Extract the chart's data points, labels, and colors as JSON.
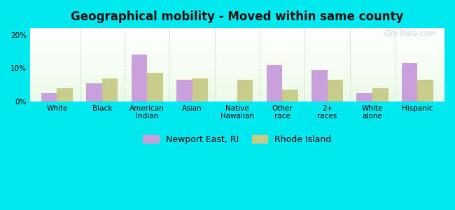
{
  "title": "Geographical mobility - Moved within same county",
  "categories": [
    "White",
    "Black",
    "American\nIndian",
    "Asian",
    "Native\nHawaiian",
    "Other\nrace",
    "2+\nraces",
    "White\nalone",
    "Hispanic"
  ],
  "newport_values": [
    2.5,
    5.5,
    14.0,
    6.5,
    0.0,
    11.0,
    9.5,
    2.5,
    11.5
  ],
  "rhode_island_values": [
    4.0,
    7.0,
    8.5,
    7.0,
    6.5,
    3.5,
    6.5,
    4.0,
    6.5
  ],
  "newport_color": "#c9a0dc",
  "rhode_island_color": "#c8cc8a",
  "background_outer": "#00e8f0",
  "grid_color": "#ffffff",
  "title_fontsize": 12,
  "tick_fontsize": 7.5,
  "legend_fontsize": 9,
  "ylim": [
    0,
    22
  ],
  "yticks": [
    0,
    10,
    20
  ],
  "bar_width": 0.35,
  "watermark": "City-Data.com"
}
